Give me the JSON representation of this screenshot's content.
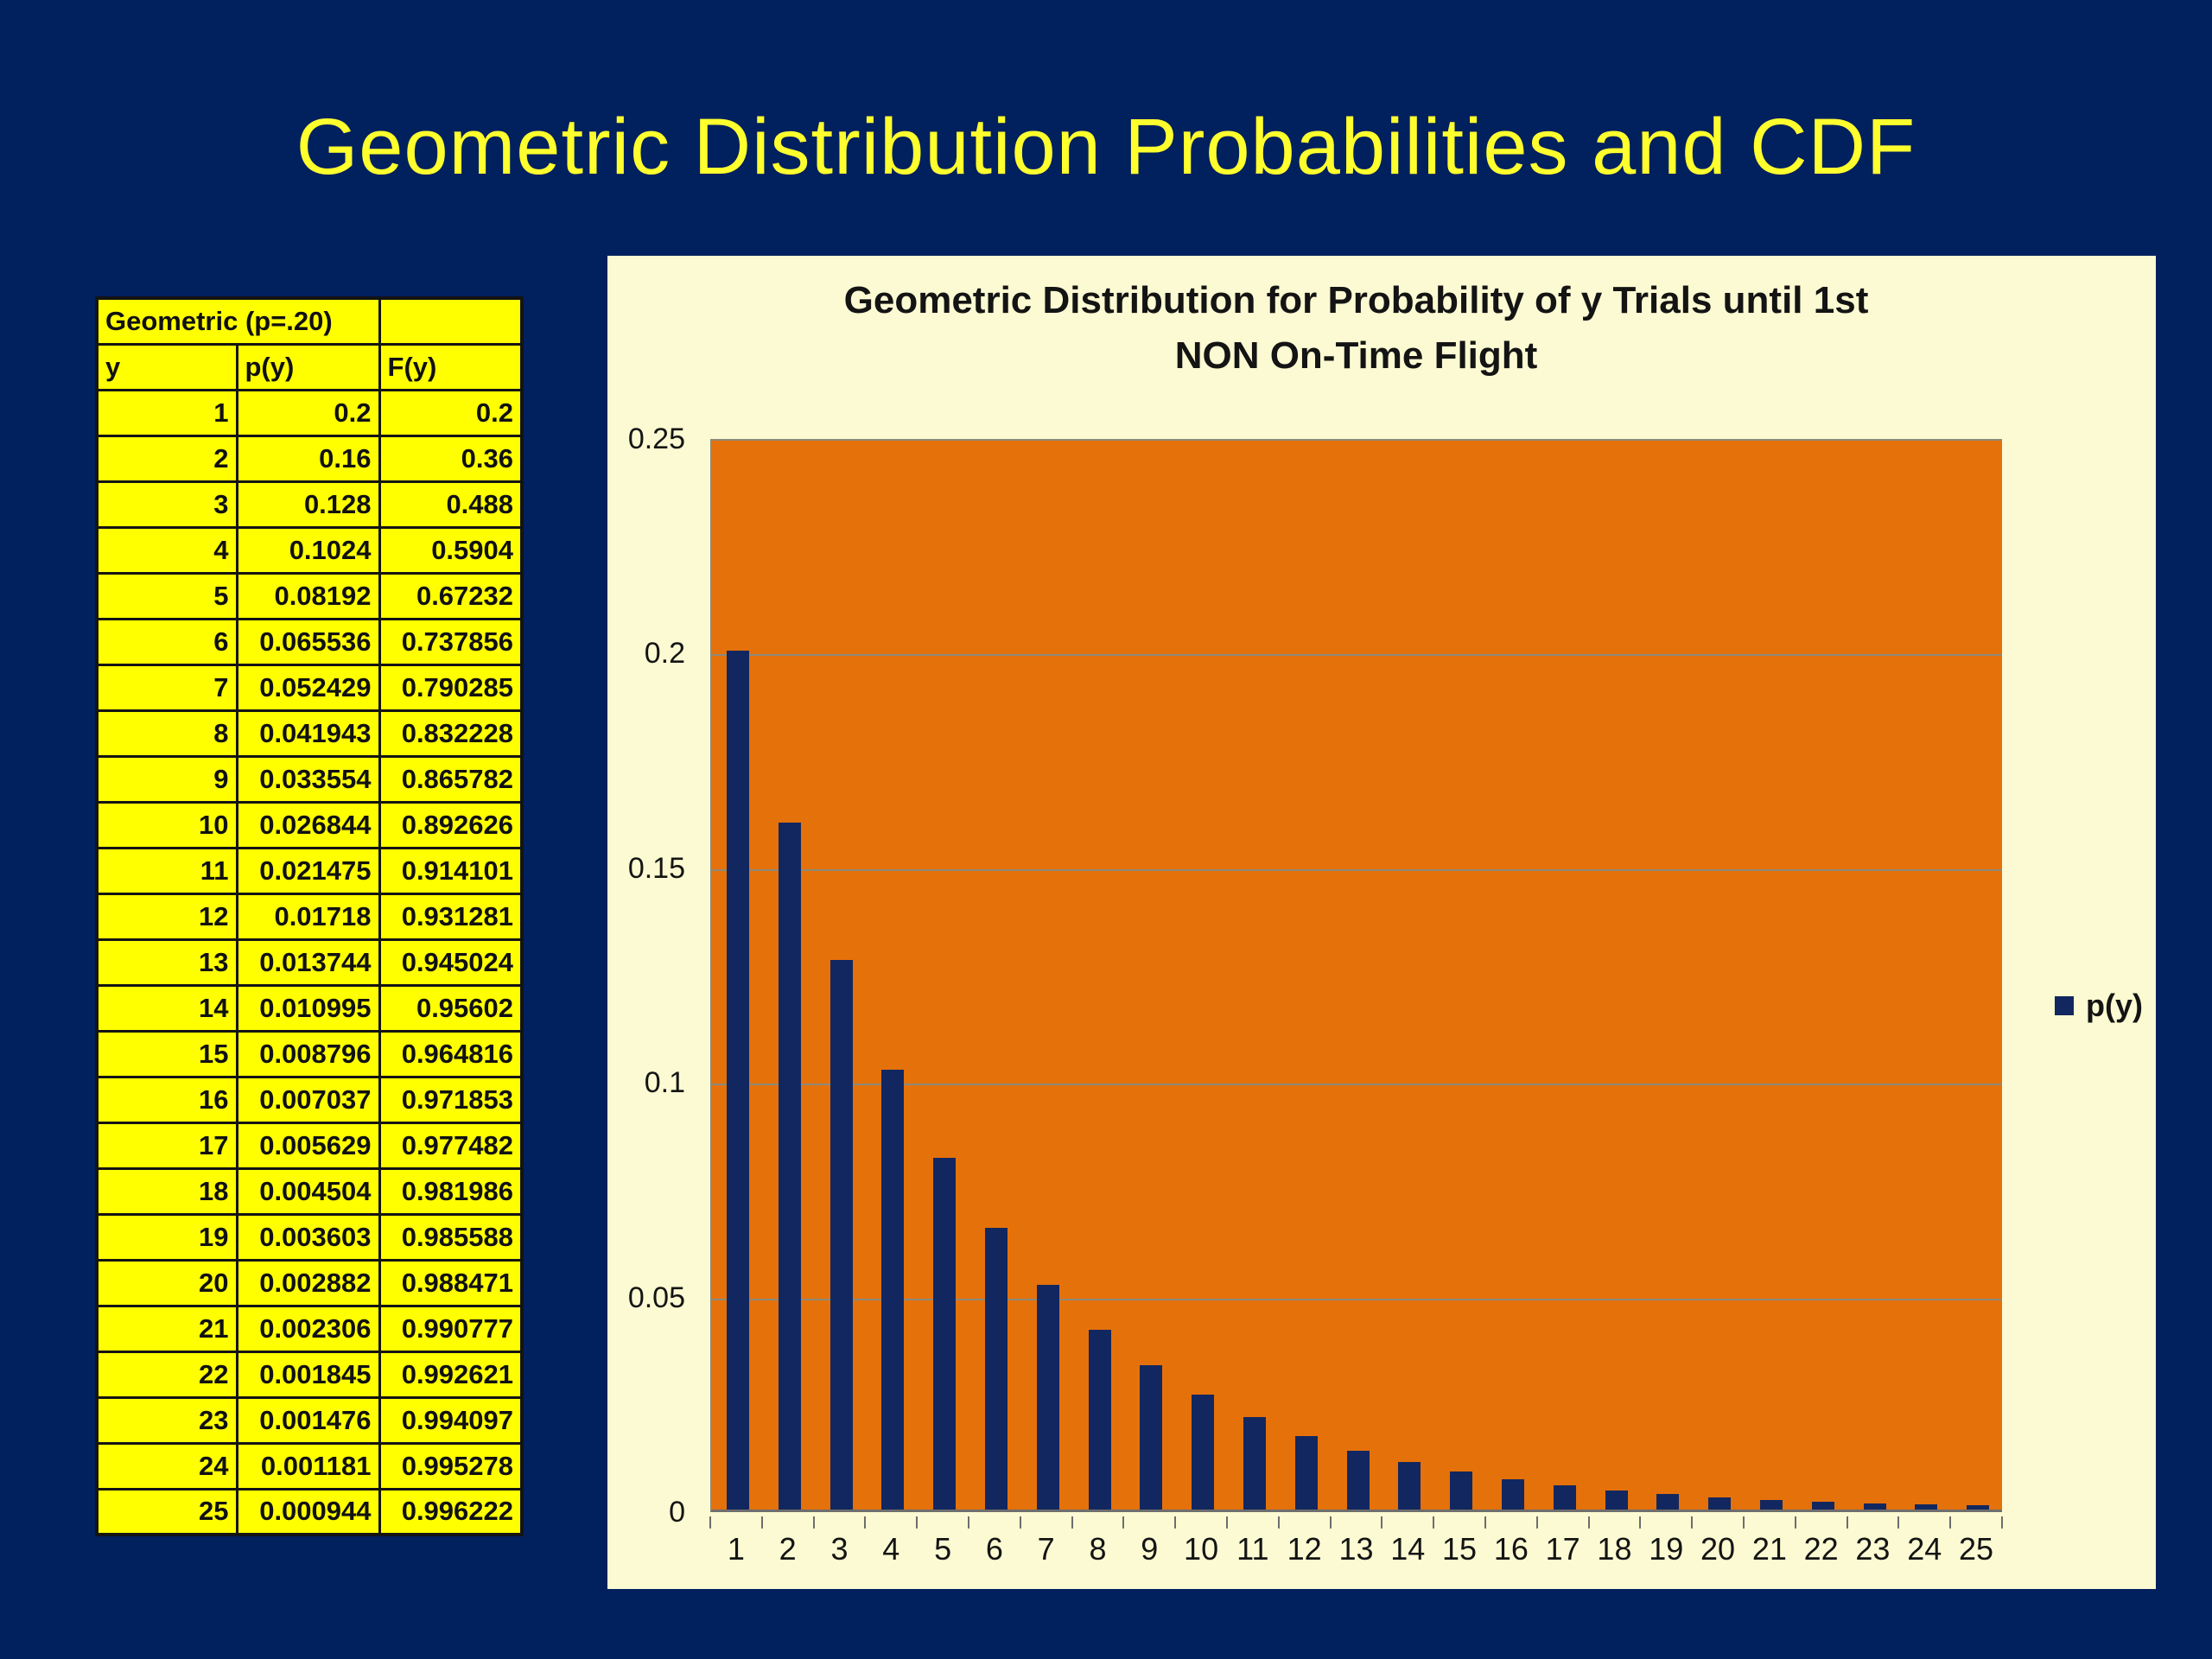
{
  "slide": {
    "title": "Geometric Distribution Probabilities and CDF"
  },
  "table": {
    "title": "Geometric (p=.20)",
    "columns": [
      "y",
      "p(y)",
      "F(y)"
    ],
    "rows": [
      [
        "1",
        "0.2",
        "0.2"
      ],
      [
        "2",
        "0.16",
        "0.36"
      ],
      [
        "3",
        "0.128",
        "0.488"
      ],
      [
        "4",
        "0.1024",
        "0.5904"
      ],
      [
        "5",
        "0.08192",
        "0.67232"
      ],
      [
        "6",
        "0.065536",
        "0.737856"
      ],
      [
        "7",
        "0.052429",
        "0.790285"
      ],
      [
        "8",
        "0.041943",
        "0.832228"
      ],
      [
        "9",
        "0.033554",
        "0.865782"
      ],
      [
        "10",
        "0.026844",
        "0.892626"
      ],
      [
        "11",
        "0.021475",
        "0.914101"
      ],
      [
        "12",
        "0.01718",
        "0.931281"
      ],
      [
        "13",
        "0.013744",
        "0.945024"
      ],
      [
        "14",
        "0.010995",
        "0.95602"
      ],
      [
        "15",
        "0.008796",
        "0.964816"
      ],
      [
        "16",
        "0.007037",
        "0.971853"
      ],
      [
        "17",
        "0.005629",
        "0.977482"
      ],
      [
        "18",
        "0.004504",
        "0.981986"
      ],
      [
        "19",
        "0.003603",
        "0.985588"
      ],
      [
        "20",
        "0.002882",
        "0.988471"
      ],
      [
        "21",
        "0.002306",
        "0.990777"
      ],
      [
        "22",
        "0.001845",
        "0.992621"
      ],
      [
        "23",
        "0.001476",
        "0.994097"
      ],
      [
        "24",
        "0.001181",
        "0.995278"
      ],
      [
        "25",
        "0.000944",
        "0.996222"
      ]
    ]
  },
  "chart_data": {
    "type": "bar",
    "title_line1": "Geometric Distribution for Probability of y Trials until 1st",
    "title_line2": "NON On-Time Flight",
    "legend_label": "p(y)",
    "legend_position": "right",
    "grid": true,
    "categories": [
      1,
      2,
      3,
      4,
      5,
      6,
      7,
      8,
      9,
      10,
      11,
      12,
      13,
      14,
      15,
      16,
      17,
      18,
      19,
      20,
      21,
      22,
      23,
      24,
      25
    ],
    "series": [
      {
        "name": "p(y)",
        "values": [
          0.2,
          0.16,
          0.128,
          0.1024,
          0.08192,
          0.065536,
          0.052429,
          0.041943,
          0.033554,
          0.026844,
          0.021475,
          0.01718,
          0.013744,
          0.010995,
          0.008796,
          0.007037,
          0.005629,
          0.004504,
          0.003603,
          0.002882,
          0.002306,
          0.001845,
          0.001476,
          0.001181,
          0.000944
        ]
      }
    ],
    "xlabel": "",
    "ylabel": "",
    "ylim": [
      0,
      0.25
    ],
    "yticks": [
      0,
      0.05,
      0.1,
      0.15,
      0.2,
      0.25
    ],
    "ytick_labels": [
      "0",
      "0.05",
      "0.1",
      "0.15",
      "0.2",
      "0.25"
    ]
  },
  "colors": {
    "background": "#01205E",
    "title_text": "#FFFF2E",
    "table_bg": "#FFFF00",
    "table_border": "#141414",
    "table_text": "#111111",
    "panel_bg": "#FBFAD2",
    "plot_bg": "#E5710B",
    "bar": "#12275F",
    "grid_line": "#8B8B7B",
    "axis_line": "#6E6E6E",
    "chart_text": "#141414"
  }
}
